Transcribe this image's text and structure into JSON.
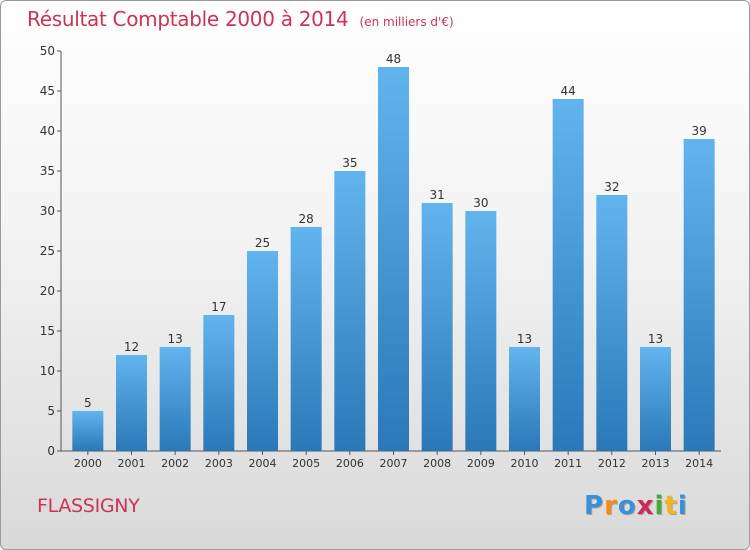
{
  "title": "Résultat Comptable 2000 à 2014",
  "unit_label": "(en milliers d'€)",
  "location": "FLASSIGNY",
  "brand": {
    "letters": [
      "P",
      "r",
      "o",
      "x",
      "i",
      "t",
      "i"
    ],
    "colors": [
      "#3a8fd6",
      "#f28c1e",
      "#3a8fd6",
      "#cc2a5a",
      "#4aa83c",
      "#f2b51e",
      "#3a8fd6"
    ]
  },
  "colors": {
    "title": "#cc3355",
    "bar_light": "#62b4ee",
    "bar_dark": "#2a78b8"
  },
  "chart_data": {
    "type": "bar",
    "categories": [
      "2000",
      "2001",
      "2002",
      "2003",
      "2004",
      "2005",
      "2006",
      "2007",
      "2008",
      "2009",
      "2010",
      "2011",
      "2012",
      "2013",
      "2014"
    ],
    "values": [
      5,
      12,
      13,
      17,
      25,
      28,
      35,
      48,
      31,
      30,
      13,
      44,
      32,
      13,
      39
    ],
    "ylim": [
      0,
      50
    ],
    "yticks": [
      0,
      5,
      10,
      15,
      20,
      25,
      30,
      35,
      40,
      45,
      50
    ],
    "grid": false,
    "data_labels": true
  }
}
